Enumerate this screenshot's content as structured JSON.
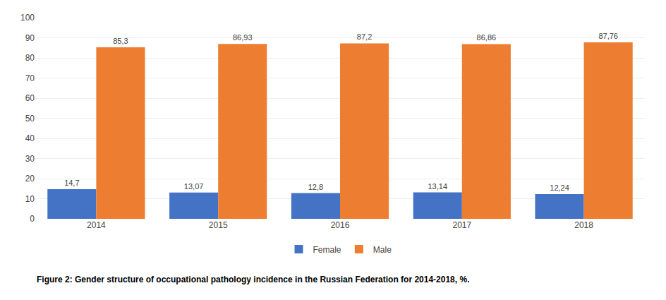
{
  "chart_data": {
    "type": "bar",
    "categories": [
      "2014",
      "2015",
      "2016",
      "2017",
      "2018"
    ],
    "series": [
      {
        "name": "Female",
        "color": "#4472C4",
        "values": [
          14.7,
          13.07,
          12.8,
          13.14,
          12.24
        ],
        "value_labels": [
          "14,7",
          "13,07",
          "12,8",
          "13,14",
          "12,24"
        ]
      },
      {
        "name": "Male",
        "color": "#ED7D31",
        "values": [
          85.3,
          86.93,
          87.2,
          86.86,
          87.76
        ],
        "value_labels": [
          "85,3",
          "86,93",
          "87,2",
          "86,86",
          "87,76"
        ]
      }
    ],
    "ylim": [
      0,
      100
    ],
    "yticks": [
      0,
      10,
      20,
      30,
      40,
      50,
      60,
      70,
      80,
      90,
      100
    ],
    "grid": true,
    "data_labels": true,
    "legend": "bottom",
    "annotations": [
      "Figure 2: Gender structure of occupational pathology incidence in the Russian Federation for 2014-2018, %."
    ]
  }
}
